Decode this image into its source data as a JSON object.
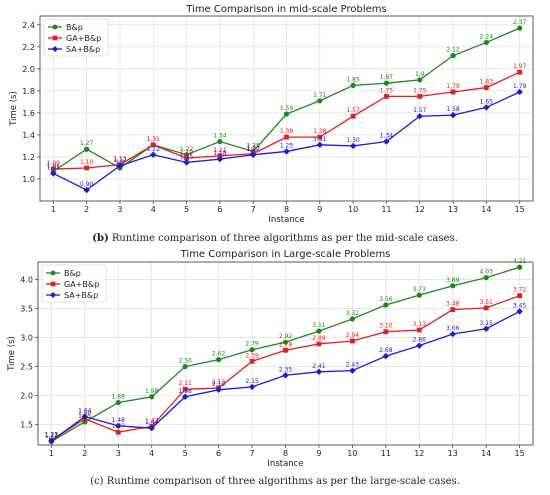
{
  "captions": [
    {
      "label": "(b)",
      "text": " Runtime comparison of three algorithms as per the mid-scale cases."
    },
    {
      "label": "",
      "text": "(c) Runtime comparison of three algorithms as per the large-scale cases."
    }
  ],
  "chart_data": [
    {
      "type": "line",
      "title": "Time Comparison in mid-scale Problems",
      "xlabel": "Instance",
      "ylabel": "Time (s)",
      "x": [
        1,
        2,
        3,
        4,
        5,
        6,
        7,
        8,
        9,
        10,
        11,
        12,
        13,
        14,
        15
      ],
      "xticks": [
        "1",
        "2",
        "3",
        "4",
        "5",
        "6",
        "7",
        "8",
        "9",
        "10",
        "11",
        "12",
        "13",
        "14",
        "15"
      ],
      "ylim": [
        0.8,
        2.48
      ],
      "yticks": [
        1.0,
        1.2,
        1.4,
        1.6,
        1.8,
        2.0,
        2.2,
        2.4
      ],
      "yticklabels": [
        "1.0",
        "1.2",
        "1.4",
        "1.6",
        "1.8",
        "2.0",
        "2.2",
        "2.4"
      ],
      "grid": true,
      "legend": "top-left",
      "series": [
        {
          "name": "B&p",
          "color": "#1a8a1a",
          "marker": "circle",
          "values": [
            1.07,
            1.27,
            1.1,
            1.31,
            1.22,
            1.34,
            1.25,
            1.59,
            1.71,
            1.85,
            1.87,
            1.9,
            2.12,
            2.24,
            2.37
          ],
          "labels": [
            "1.07",
            "1.27",
            "1.1",
            "1.31",
            "1.22",
            "1.34",
            "1.25",
            "1.59",
            "1.71",
            "1.85",
            "1.87",
            "1.9",
            "2.12",
            "2.24",
            "2.37"
          ]
        },
        {
          "name": "GA+B&p",
          "color": "#e81c1c",
          "marker": "square",
          "values": [
            1.09,
            1.1,
            1.13,
            1.31,
            1.19,
            1.21,
            1.23,
            1.38,
            1.38,
            1.57,
            1.75,
            1.75,
            1.79,
            1.83,
            1.97
          ],
          "labels": [
            "1.09",
            "1.10",
            "1.13",
            "1.31",
            "1.19",
            "1.21",
            "1.23",
            "1.38",
            "1.38",
            "1.57",
            "1.75",
            "1.75",
            "1.79",
            "1.83",
            "1.97"
          ]
        },
        {
          "name": "SA+B&p",
          "color": "#1a1adf",
          "marker": "diamond",
          "values": [
            1.05,
            0.9,
            1.12,
            1.22,
            1.15,
            1.18,
            1.22,
            1.25,
            1.31,
            1.3,
            1.34,
            1.57,
            1.58,
            1.65,
            1.79
          ],
          "labels": [
            "1.05",
            "0.90",
            "1.12",
            "1.22",
            "1.15",
            "1.18",
            "1.22",
            "1.25",
            "1.31",
            "1.30",
            "1.34",
            "1.57",
            "1.58",
            "1.65",
            "1.79"
          ]
        }
      ]
    },
    {
      "type": "line",
      "title": "Time Comparison in Large-scale Problems",
      "xlabel": "Instance",
      "ylabel": "Time (s)",
      "x": [
        1,
        2,
        3,
        4,
        5,
        6,
        7,
        8,
        9,
        10,
        11,
        12,
        13,
        14,
        15
      ],
      "xticks": [
        "1",
        "2",
        "3",
        "4",
        "5",
        "6",
        "7",
        "8",
        "9",
        "10",
        "11",
        "12",
        "13",
        "14",
        "15"
      ],
      "ylim": [
        1.15,
        4.3
      ],
      "yticks": [
        1.5,
        2.0,
        2.5,
        3.0,
        3.5,
        4.0
      ],
      "yticklabels": [
        "1.5",
        "2.0",
        "2.5",
        "3.0",
        "3.5",
        "4.0"
      ],
      "grid": true,
      "legend": "top-left",
      "series": [
        {
          "name": "B&p",
          "color": "#1a8a1a",
          "marker": "circle",
          "values": [
            1.21,
            1.55,
            1.88,
            1.98,
            2.5,
            2.62,
            2.79,
            2.92,
            3.11,
            3.32,
            3.56,
            3.73,
            3.89,
            4.03,
            4.21
          ],
          "labels": [
            "1.21",
            "1.55",
            "1.88",
            "1.98",
            "2.50",
            "2.62",
            "2.79",
            "2.92",
            "3.11",
            "3.32",
            "3.56",
            "3.73",
            "3.89",
            "4.03",
            "4.21"
          ]
        },
        {
          "name": "GA+B&p",
          "color": "#e81c1c",
          "marker": "square",
          "values": [
            1.23,
            1.6,
            1.37,
            1.47,
            2.11,
            2.13,
            2.59,
            2.78,
            2.89,
            2.94,
            3.1,
            3.13,
            3.48,
            3.51,
            3.72
          ],
          "labels": [
            "1.23",
            "1.60",
            "1.37",
            "1.47",
            "2.11",
            "2.13",
            "2.59",
            "2.78",
            "2.89",
            "2.94",
            "3.10",
            "3.13",
            "3.48",
            "3.51",
            "3.72"
          ]
        },
        {
          "name": "SA+B&p",
          "color": "#1a1adf",
          "marker": "diamond",
          "values": [
            1.22,
            1.64,
            1.48,
            1.44,
            1.98,
            2.1,
            2.15,
            2.35,
            2.41,
            2.43,
            2.68,
            2.86,
            3.06,
            3.15,
            3.45
          ],
          "labels": [
            "1.22",
            "1.64",
            "1.48",
            "1.44",
            "1.98",
            "2.10",
            "2.15",
            "2.35",
            "2.41",
            "2.43",
            "2.68",
            "2.86",
            "3.06",
            "3.15",
            "3.45"
          ]
        }
      ]
    }
  ]
}
